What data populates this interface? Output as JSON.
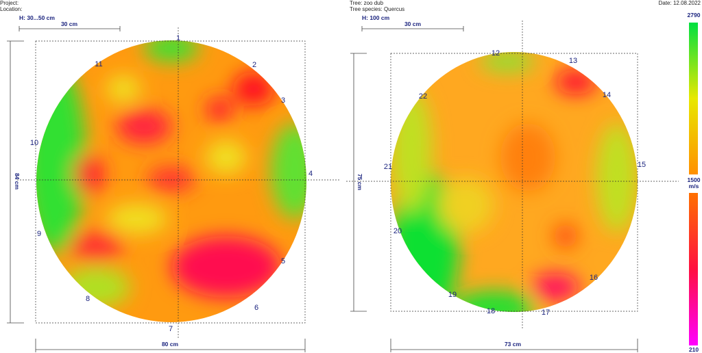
{
  "header": {
    "project": "Project:",
    "location": "Location:",
    "tree": "Tree: zoo dub",
    "species": "Tree species: Quercus",
    "date": "Date: 12.08.2022"
  },
  "panels": [
    {
      "height_label": "H: 30...50 cm",
      "scale_label": "30 cm",
      "width_label": "80 cm",
      "depth_label": "84 cm",
      "sensors": [
        "1",
        "2",
        "3",
        "4",
        "5",
        "6",
        "7",
        "8",
        "9",
        "10",
        "11"
      ]
    },
    {
      "height_label": "H: 100 cm",
      "scale_label": "30 cm",
      "width_label": "73 cm",
      "depth_label": "75 cm",
      "sensors": [
        "12",
        "13",
        "14",
        "15",
        "16",
        "17",
        "18",
        "19",
        "20",
        "21",
        "22"
      ]
    }
  ],
  "legend": {
    "max": "2790",
    "mid": "1500",
    "unit": "m/s",
    "min": "210"
  }
}
